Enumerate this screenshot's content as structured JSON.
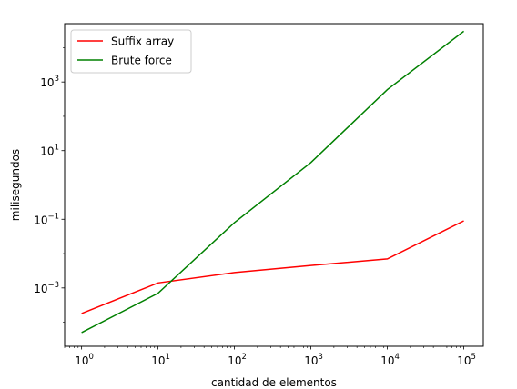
{
  "chart_data": {
    "type": "line",
    "title": "",
    "xlabel": "cantidad de elementos",
    "ylabel": "milisegundos",
    "xscale": "log",
    "yscale": "log",
    "xlim": [
      0.6,
      180000
    ],
    "ylim": [
      2e-05,
      50000
    ],
    "grid": false,
    "legend_position": "upper-left",
    "x_ticks": [
      {
        "value": 1,
        "label": "10",
        "exp": "0"
      },
      {
        "value": 10,
        "label": "10",
        "exp": "1"
      },
      {
        "value": 100,
        "label": "10",
        "exp": "2"
      },
      {
        "value": 1000,
        "label": "10",
        "exp": "3"
      },
      {
        "value": 10000,
        "label": "10",
        "exp": "4"
      },
      {
        "value": 100000,
        "label": "10",
        "exp": "5"
      }
    ],
    "y_ticks": [
      {
        "value": 0.001,
        "label": "10",
        "exp": "−3"
      },
      {
        "value": 0.1,
        "label": "10",
        "exp": "−1"
      },
      {
        "value": 10,
        "label": "10",
        "exp": "1"
      },
      {
        "value": 1000,
        "label": "10",
        "exp": "3"
      }
    ],
    "x": [
      1,
      10,
      100,
      1000,
      10000,
      100000
    ],
    "series": [
      {
        "name": "Suffix array",
        "color": "#ff0000",
        "values": [
          0.00018,
          0.0014,
          0.0028,
          0.0045,
          0.007,
          0.09
        ]
      },
      {
        "name": "Brute force",
        "color": "#008000",
        "values": [
          5e-05,
          0.0007,
          0.08,
          4.5,
          600,
          30000
        ]
      }
    ]
  }
}
